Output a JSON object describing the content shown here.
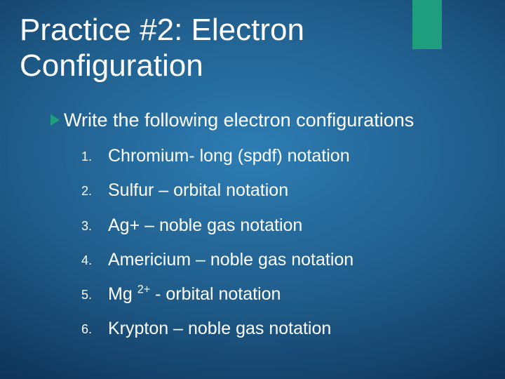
{
  "accent_color": "#1f9e7d",
  "background_gradient": {
    "center": "#2d7db3",
    "mid": "#1f5c8a",
    "outer": "#0d3155",
    "edge": "#061f3a"
  },
  "text_color": "#ffffff",
  "title": "Practice #2:  Electron Configuration",
  "title_fontsize": 44,
  "lead_text": "Write the following electron configurations",
  "lead_fontsize": 27,
  "items_fontsize": 25,
  "items": [
    {
      "text": "Chromium- long (spdf) notation"
    },
    {
      "text": "Sulfur – orbital notation"
    },
    {
      "text": "Ag+ – noble gas notation"
    },
    {
      "text": "Americium – noble gas notation"
    },
    {
      "prefix": "Mg ",
      "sup": "2+",
      "suffix": " - orbital notation"
    },
    {
      "text": "Krypton – noble gas notation"
    }
  ]
}
